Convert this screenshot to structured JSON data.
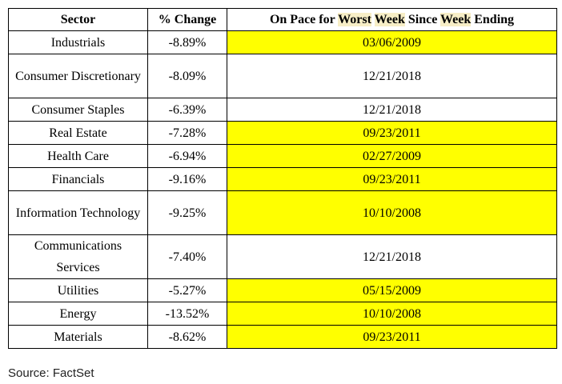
{
  "table": {
    "headers": {
      "sector": "Sector",
      "change": "% Change",
      "pace_parts": [
        "On Pace for ",
        "Worst",
        " ",
        "Week",
        " Since ",
        "Week",
        " Ending"
      ]
    },
    "rows": [
      {
        "sector": "Industrials",
        "change": "-8.89%",
        "date": "03/06/2009",
        "highlight": true
      },
      {
        "sector": "Consumer Discretionary",
        "change": "-8.09%",
        "date": "12/21/2018",
        "highlight": false
      },
      {
        "sector": "Consumer Staples",
        "change": "-6.39%",
        "date": "12/21/2018",
        "highlight": false
      },
      {
        "sector": "Real Estate",
        "change": "-7.28%",
        "date": "09/23/2011",
        "highlight": true
      },
      {
        "sector": "Health Care",
        "change": "-6.94%",
        "date": "02/27/2009",
        "highlight": true
      },
      {
        "sector": "Financials",
        "change": "-9.16%",
        "date": "09/23/2011",
        "highlight": true
      },
      {
        "sector": "Information Technology",
        "change": "-9.25%",
        "date": "10/10/2008",
        "highlight": true
      },
      {
        "sector": "Communications Services",
        "change": "-7.40%",
        "date": "12/21/2018",
        "highlight": false
      },
      {
        "sector": "Utilities",
        "change": "-5.27%",
        "date": "05/15/2009",
        "highlight": true
      },
      {
        "sector": "Energy",
        "change": "-13.52%",
        "date": "10/10/2008",
        "highlight": true
      },
      {
        "sector": "Materials",
        "change": "-8.62%",
        "date": "09/23/2011",
        "highlight": true
      }
    ]
  },
  "source": "Source: FactSet",
  "colors": {
    "highlight": "#ffff00",
    "header_word_highlight": "#f7eec6"
  }
}
